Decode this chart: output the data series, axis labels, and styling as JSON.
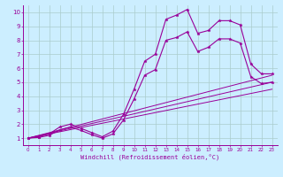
{
  "title": "",
  "xlabel": "Windchill (Refroidissement éolien,°C)",
  "bg_color": "#cceeff",
  "grid_color": "#aacccc",
  "line_color": "#990099",
  "xticks": [
    0,
    1,
    2,
    3,
    4,
    5,
    6,
    7,
    8,
    9,
    10,
    11,
    12,
    13,
    14,
    15,
    16,
    17,
    18,
    19,
    20,
    21,
    22,
    23
  ],
  "yticks": [
    1,
    2,
    3,
    4,
    5,
    6,
    7,
    8,
    9,
    10
  ],
  "xlim": [
    -0.5,
    23.5
  ],
  "ylim": [
    0.5,
    10.5
  ],
  "line1_x": [
    0,
    1,
    2,
    3,
    4,
    5,
    6,
    7,
    8,
    9,
    10,
    11,
    12,
    13,
    14,
    15,
    16,
    17,
    18,
    19,
    20,
    21,
    22,
    23
  ],
  "line1_y": [
    1.0,
    1.1,
    1.3,
    1.8,
    2.0,
    1.7,
    1.4,
    1.1,
    1.5,
    2.7,
    4.5,
    6.5,
    7.0,
    9.5,
    9.8,
    10.2,
    8.5,
    8.7,
    9.4,
    9.4,
    9.1,
    6.3,
    5.6,
    5.6
  ],
  "line2_x": [
    0,
    1,
    2,
    3,
    4,
    5,
    6,
    7,
    8,
    9,
    10,
    11,
    12,
    13,
    14,
    15,
    16,
    17,
    18,
    19,
    20,
    21,
    22,
    23
  ],
  "line2_y": [
    1.0,
    1.05,
    1.2,
    1.6,
    1.8,
    1.55,
    1.25,
    1.0,
    1.3,
    2.3,
    3.8,
    5.5,
    5.9,
    8.0,
    8.2,
    8.6,
    7.2,
    7.5,
    8.1,
    8.1,
    7.8,
    5.4,
    4.9,
    5.0
  ],
  "line3_x": [
    0,
    23
  ],
  "line3_y": [
    1.0,
    5.5
  ],
  "line4_x": [
    0,
    23
  ],
  "line4_y": [
    1.0,
    5.0
  ],
  "line5_x": [
    0,
    23
  ],
  "line5_y": [
    1.0,
    4.5
  ]
}
